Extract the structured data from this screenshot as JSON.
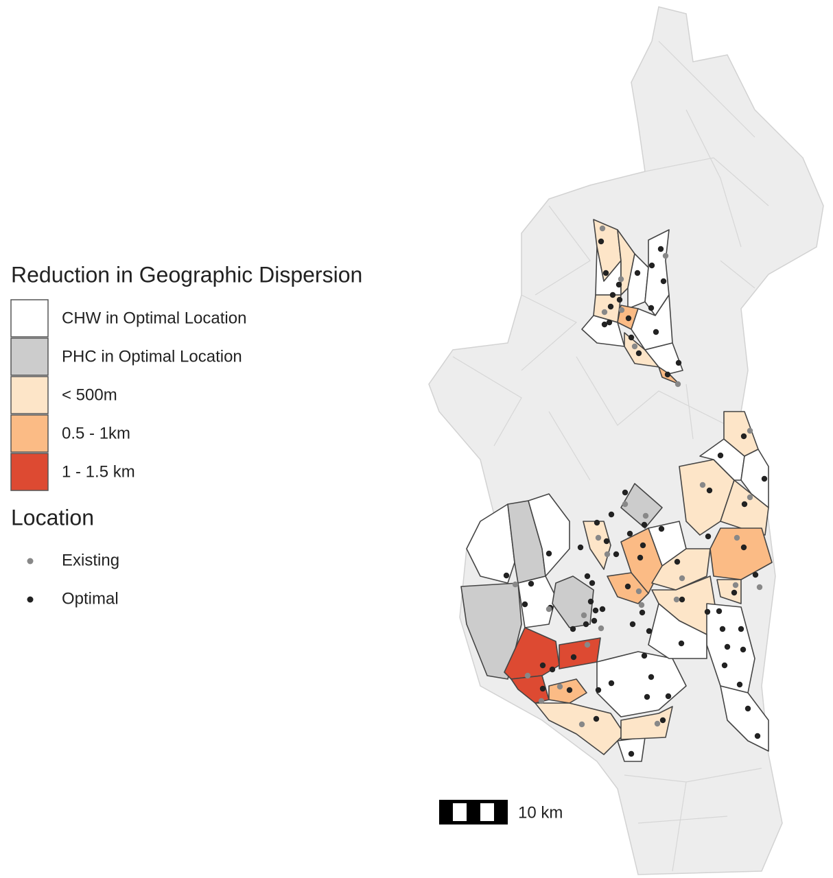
{
  "legend": {
    "title": "Reduction in Geographic Dispersion",
    "items": [
      {
        "label": "CHW in Optimal Location",
        "color": "#ffffff"
      },
      {
        "label": "PHC in Optimal Location",
        "color": "#cccccc"
      },
      {
        "label": "< 500m",
        "color": "#fde5c8"
      },
      {
        "label": "0.5 - 1km",
        "color": "#fbbb85"
      },
      {
        "label": "1 - 1.5 km",
        "color": "#dd4a32"
      }
    ]
  },
  "location_legend": {
    "title": "Location",
    "items": [
      {
        "label": "Existing",
        "color": "#888888"
      },
      {
        "label": "Optimal",
        "color": "#222222"
      }
    ]
  },
  "scale_bar": {
    "label": "10 km"
  }
}
